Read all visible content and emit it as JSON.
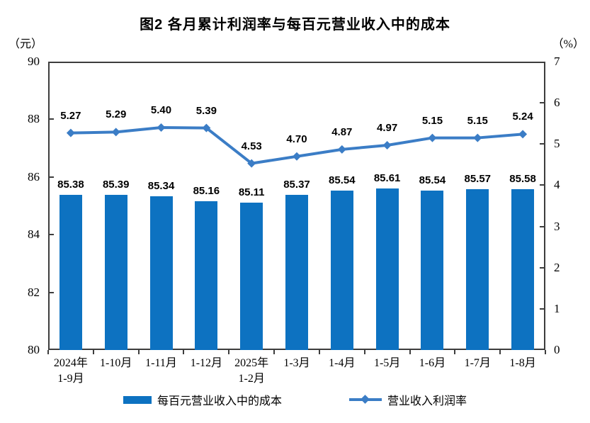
{
  "title": "图2 各月累计利润率与每百元营业收入中的成本",
  "left_axis_unit": "（元）",
  "right_axis_unit": "（%）",
  "chart_data": {
    "type": "bar+line combo",
    "title": "图2 各月累计利润率与每百元营业收入中的成本",
    "categories": [
      "2024年\n1-9月",
      "1-10月",
      "1-11月",
      "1-12月",
      "2025年\n1-2月",
      "1-3月",
      "1-4月",
      "1-5月",
      "1-6月",
      "1-7月",
      "1-8月"
    ],
    "series": [
      {
        "name": "每百元营业收入中的成本",
        "type": "bar",
        "axis": "left",
        "color": "#0d72c1",
        "values": [
          85.38,
          85.39,
          85.34,
          85.16,
          85.11,
          85.37,
          85.54,
          85.61,
          85.54,
          85.57,
          85.58
        ]
      },
      {
        "name": "营业收入利润率",
        "type": "line",
        "axis": "right",
        "color": "#3b7dc6",
        "marker": "diamond",
        "values": [
          5.27,
          5.29,
          5.4,
          5.39,
          4.53,
          4.7,
          4.87,
          4.97,
          5.15,
          5.15,
          5.24
        ]
      }
    ],
    "left_axis": {
      "unit": "元",
      "min": 80,
      "max": 90,
      "ticks": [
        80,
        82,
        84,
        86,
        88,
        90
      ]
    },
    "right_axis": {
      "unit": "%",
      "min": 0,
      "max": 7,
      "ticks": [
        0,
        1,
        2,
        3,
        4,
        5,
        6,
        7
      ]
    },
    "grid": false,
    "data_labels": true,
    "legend_position": "bottom"
  }
}
